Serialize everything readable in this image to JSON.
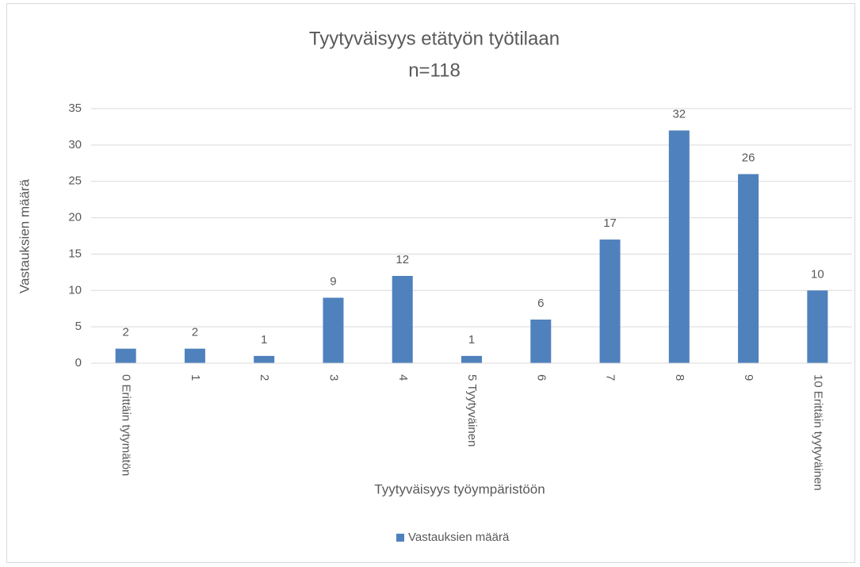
{
  "chart_data": {
    "type": "bar",
    "title": "Tyytyväisyys etätyön työtilaan",
    "subtitle": "n=118",
    "x_label": "Tyytyväisyys työympäristöön",
    "y_label": "Vastauksien määrä",
    "categories": [
      "0 Erittäin tytymätön",
      "1",
      "2",
      "3",
      "4",
      "5 Tyytyväinen",
      "6",
      "7",
      "8",
      "9",
      "10 Erittäin tyytyväinen"
    ],
    "series": [
      {
        "name": "Vastauksien määrä",
        "color": "#4f81bd",
        "values": [
          2,
          2,
          1,
          9,
          12,
          1,
          6,
          17,
          32,
          26,
          10
        ]
      }
    ],
    "ylim": [
      0,
      35
    ],
    "yticks": [
      0,
      5,
      10,
      15,
      20,
      25,
      30,
      35
    ],
    "grid": true,
    "legend": "bottom"
  }
}
